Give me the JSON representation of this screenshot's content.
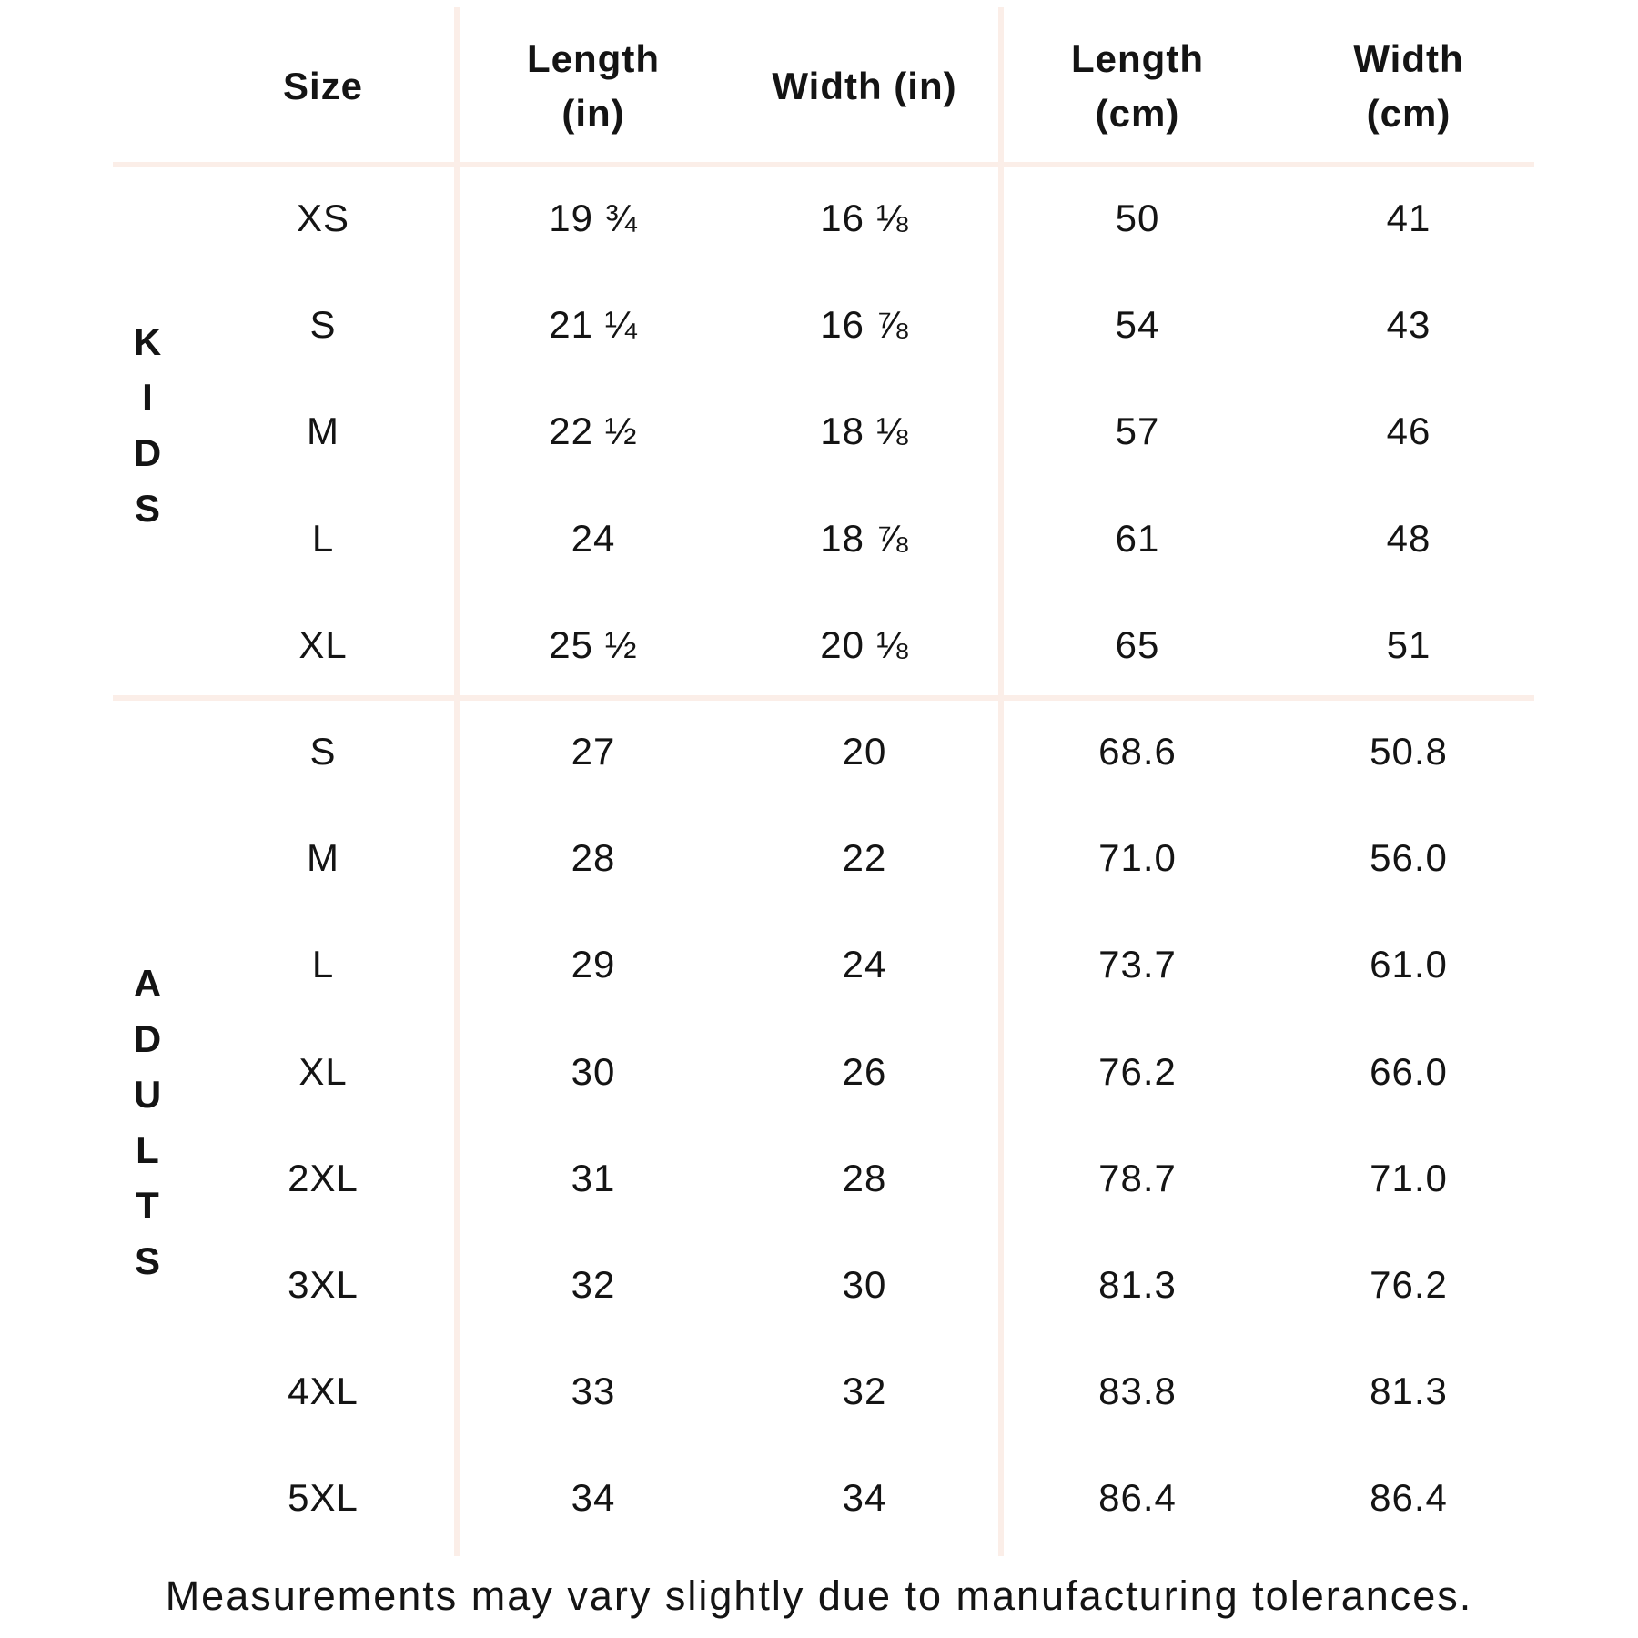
{
  "columns": [
    {
      "label": [
        "Size"
      ]
    },
    {
      "label": [
        "Length",
        "(in)"
      ]
    },
    {
      "label": [
        "Width (in)"
      ]
    },
    {
      "label": [
        "Length",
        "(cm)"
      ]
    },
    {
      "label": [
        "Width",
        "(cm)"
      ]
    }
  ],
  "groups": [
    {
      "label": "KIDS",
      "rows": [
        [
          "XS",
          "19 ¾",
          "16 ⅛",
          "50",
          "41"
        ],
        [
          "S",
          "21 ¼",
          "16 ⅞",
          "54",
          "43"
        ],
        [
          "M",
          "22 ½",
          "18 ⅛",
          "57",
          "46"
        ],
        [
          "L",
          "24",
          "18 ⅞",
          "61",
          "48"
        ],
        [
          "XL",
          "25 ½",
          "20 ⅛",
          "65",
          "51"
        ]
      ]
    },
    {
      "label": "ADULTS",
      "rows": [
        [
          "S",
          "27",
          "20",
          "68.6",
          "50.8"
        ],
        [
          "M",
          "28",
          "22",
          "71.0",
          "56.0"
        ],
        [
          "L",
          "29",
          "24",
          "73.7",
          "61.0"
        ],
        [
          "XL",
          "30",
          "26",
          "76.2",
          "66.0"
        ],
        [
          "2XL",
          "31",
          "28",
          "78.7",
          "71.0"
        ],
        [
          "3XL",
          "32",
          "30",
          "81.3",
          "76.2"
        ],
        [
          "4XL",
          "33",
          "32",
          "83.8",
          "81.3"
        ],
        [
          "5XL",
          "34",
          "34",
          "86.4",
          "86.4"
        ]
      ]
    }
  ],
  "footnote": "Measurements may vary slightly due to manufacturing tolerances.",
  "colors": {
    "rule": "#fbeee8",
    "text": "#141414"
  }
}
